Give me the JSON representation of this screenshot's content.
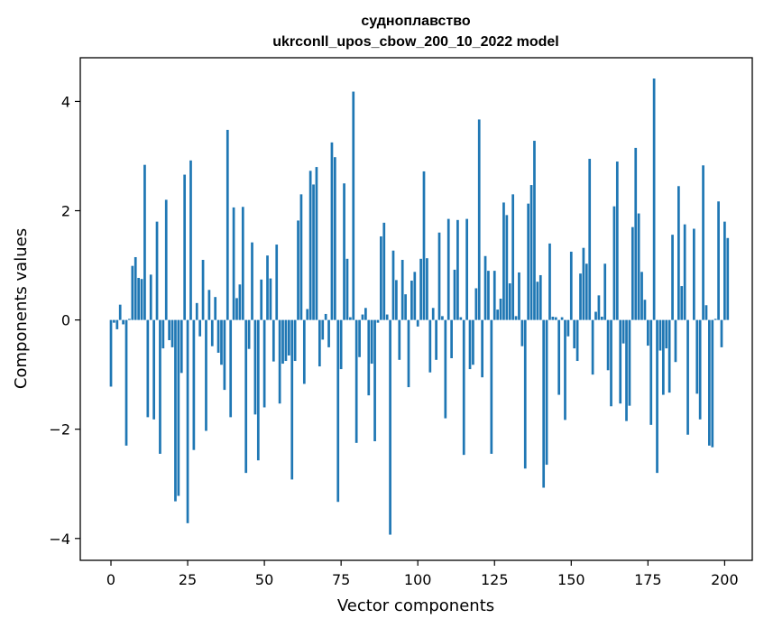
{
  "chart_data": {
    "type": "bar",
    "title": [
      "судноплавство",
      "ukrconll_upos_cbow_200_10_2022 model"
    ],
    "xlabel": "Vector components",
    "ylabel": "Components values",
    "xlim": [
      -10,
      209
    ],
    "ylim": [
      -4.4,
      4.8
    ],
    "xticks": [
      0,
      25,
      50,
      75,
      100,
      125,
      150,
      175,
      200
    ],
    "yticks": [
      -4,
      -2,
      0,
      2,
      4
    ],
    "ytick_labels": [
      "−4",
      "−2",
      "0",
      "2",
      "4"
    ],
    "bar_color": "#1f77b4",
    "values": [
      -1.22,
      -0.05,
      -0.17,
      0.28,
      -0.08,
      -2.3,
      0.02,
      0.99,
      1.15,
      0.77,
      0.75,
      2.84,
      -1.78,
      0.83,
      -1.82,
      1.8,
      -2.45,
      -0.52,
      2.2,
      -0.37,
      -0.5,
      -3.32,
      -3.22,
      -0.97,
      2.66,
      -3.72,
      2.92,
      -2.38,
      0.31,
      -0.3,
      1.1,
      -2.03,
      0.55,
      -0.48,
      0.42,
      -0.6,
      -0.82,
      -1.28,
      3.48,
      -1.78,
      2.06,
      0.4,
      0.65,
      2.07,
      -2.8,
      -0.53,
      1.42,
      -1.73,
      -2.57,
      0.74,
      -1.6,
      1.18,
      0.76,
      -0.76,
      1.38,
      -1.53,
      -0.8,
      -0.75,
      -0.65,
      -2.92,
      -0.75,
      1.82,
      2.3,
      -1.17,
      0.2,
      2.73,
      2.48,
      2.8,
      -0.85,
      -0.36,
      0.11,
      -0.5,
      3.25,
      2.98,
      -3.33,
      -0.9,
      2.5,
      1.12,
      0.05,
      4.18,
      -2.25,
      -0.68,
      0.1,
      0.22,
      -1.38,
      -0.8,
      -2.22,
      -0.05,
      1.53,
      1.78,
      0.1,
      -3.93,
      1.27,
      0.73,
      -0.73,
      1.1,
      0.47,
      -1.23,
      0.72,
      0.88,
      -0.12,
      1.12,
      2.72,
      1.13,
      -0.96,
      0.22,
      -0.73,
      1.6,
      0.07,
      -1.8,
      1.85,
      -0.7,
      0.92,
      1.83,
      0.05,
      -2.47,
      1.85,
      -0.9,
      -0.82,
      0.58,
      3.67,
      -1.05,
      1.17,
      0.9,
      -2.45,
      0.9,
      0.19,
      0.39,
      2.15,
      1.92,
      0.67,
      2.3,
      0.07,
      0.87,
      -0.48,
      -2.72,
      2.13,
      2.47,
      3.28,
      0.7,
      0.82,
      -3.07,
      -2.65,
      1.4,
      0.06,
      0.05,
      -1.37,
      0.05,
      -1.83,
      -0.3,
      1.25,
      -0.52,
      -0.75,
      0.85,
      1.32,
      1.03,
      2.95,
      -1.0,
      0.15,
      0.45,
      0.06,
      1.03,
      -0.92,
      -1.58,
      2.08,
      2.9,
      -1.53,
      -0.43,
      -1.85,
      -1.57,
      1.7,
      3.15,
      1.95,
      0.88,
      0.37,
      -0.47,
      -1.92,
      4.42,
      -2.8,
      -0.56,
      -1.37,
      -0.52,
      -1.33,
      1.56,
      -0.77,
      2.45,
      0.62,
      1.75,
      -2.1,
      0.0,
      1.67,
      -1.35,
      -1.82,
      2.83,
      0.27,
      -2.3,
      -2.33,
      0.02,
      2.17,
      -0.5,
      1.8,
      1.5
    ]
  }
}
